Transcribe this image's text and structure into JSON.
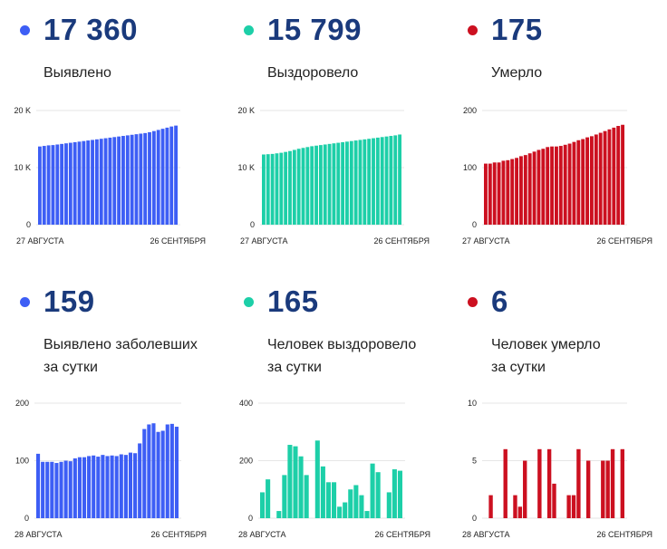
{
  "colors": {
    "blue": "#3d5ef5",
    "green": "#1dcfa8",
    "red": "#cc1020",
    "value_text": "#1a3a7c"
  },
  "cards": [
    {
      "value": "17 360",
      "label_lines": [
        "Выявлено"
      ],
      "color": "blue",
      "chart_data": {
        "type": "bar",
        "x_start_label": "27 АВГУСТА",
        "x_end_label": "26 СЕНТЯБРЯ",
        "ylim": [
          0,
          20000
        ],
        "yticks": [
          "0",
          "10 K",
          "20 K"
        ],
        "ytick_values": [
          0,
          10000,
          20000
        ],
        "values": [
          13700,
          13800,
          13900,
          13950,
          14050,
          14150,
          14250,
          14350,
          14450,
          14550,
          14650,
          14750,
          14850,
          14950,
          15050,
          15150,
          15250,
          15350,
          15450,
          15550,
          15650,
          15750,
          15850,
          15950,
          16050,
          16200,
          16400,
          16600,
          16800,
          17000,
          17200,
          17360
        ]
      }
    },
    {
      "value": "15 799",
      "label_lines": [
        "Выздоровело"
      ],
      "color": "green",
      "chart_data": {
        "type": "bar",
        "x_start_label": "27 АВГУСТА",
        "x_end_label": "26 СЕНТЯБРЯ",
        "ylim": [
          0,
          20000
        ],
        "yticks": [
          "0",
          "10 K",
          "20 K"
        ],
        "ytick_values": [
          0,
          10000,
          20000
        ],
        "values": [
          12300,
          12350,
          12400,
          12500,
          12600,
          12750,
          12900,
          13100,
          13300,
          13450,
          13600,
          13750,
          13850,
          13950,
          14050,
          14150,
          14250,
          14350,
          14450,
          14550,
          14650,
          14750,
          14850,
          14950,
          15050,
          15150,
          15250,
          15350,
          15450,
          15550,
          15650,
          15799
        ]
      }
    },
    {
      "value": "175",
      "label_lines": [
        "Умерло"
      ],
      "color": "red",
      "chart_data": {
        "type": "bar",
        "x_start_label": "27 АВГУСТА",
        "x_end_label": "26 СЕНТЯБРЯ",
        "ylim": [
          0,
          200
        ],
        "yticks": [
          "0",
          "100",
          "200"
        ],
        "ytick_values": [
          0,
          100,
          200
        ],
        "values": [
          107,
          107,
          109,
          109,
          112,
          113,
          115,
          117,
          120,
          122,
          125,
          128,
          131,
          133,
          136,
          137,
          137,
          138,
          140,
          142,
          145,
          148,
          150,
          153,
          155,
          158,
          161,
          164,
          167,
          170,
          173,
          175
        ]
      }
    },
    {
      "value": "159",
      "label_lines": [
        "Выявлено заболевших",
        "за сутки"
      ],
      "color": "blue",
      "chart_data": {
        "type": "bar",
        "x_start_label": "28 АВГУСТА",
        "x_end_label": "26 СЕНТЯБРЯ",
        "ylim": [
          0,
          200
        ],
        "yticks": [
          "0",
          "100",
          "200"
        ],
        "ytick_values": [
          0,
          100,
          200
        ],
        "values": [
          112,
          98,
          98,
          98,
          96,
          98,
          100,
          99,
          104,
          106,
          106,
          108,
          109,
          107,
          110,
          108,
          109,
          108,
          111,
          110,
          114,
          113,
          130,
          155,
          163,
          165,
          150,
          152,
          163,
          164,
          159
        ]
      }
    },
    {
      "value": "165",
      "label_lines": [
        "Человек выздоровело",
        "за сутки"
      ],
      "color": "green",
      "chart_data": {
        "type": "bar",
        "x_start_label": "28 АВГУСТА",
        "x_end_label": "26 СЕНТЯБРЯ",
        "ylim": [
          0,
          400
        ],
        "yticks": [
          "0",
          "200",
          "400"
        ],
        "ytick_values": [
          0,
          200,
          400
        ],
        "values": [
          90,
          135,
          0,
          25,
          150,
          255,
          250,
          215,
          150,
          0,
          270,
          180,
          125,
          125,
          40,
          55,
          100,
          115,
          80,
          25,
          190,
          160,
          0,
          90,
          170,
          165
        ]
      }
    },
    {
      "value": "6",
      "label_lines": [
        "Человек умерло",
        "за сутки"
      ],
      "color": "red",
      "chart_data": {
        "type": "bar",
        "x_start_label": "28 АВГУСТА",
        "x_end_label": "26 СЕНТЯБРЯ",
        "ylim": [
          0,
          10
        ],
        "yticks": [
          "0",
          "5",
          "10"
        ],
        "ytick_values": [
          0,
          5,
          10
        ],
        "values": [
          0,
          2,
          0,
          0,
          6,
          0,
          2,
          1,
          5,
          0,
          0,
          6,
          0,
          6,
          3,
          0,
          0,
          2,
          2,
          6,
          0,
          5,
          0,
          0,
          5,
          5,
          6,
          0,
          6
        ]
      }
    }
  ]
}
